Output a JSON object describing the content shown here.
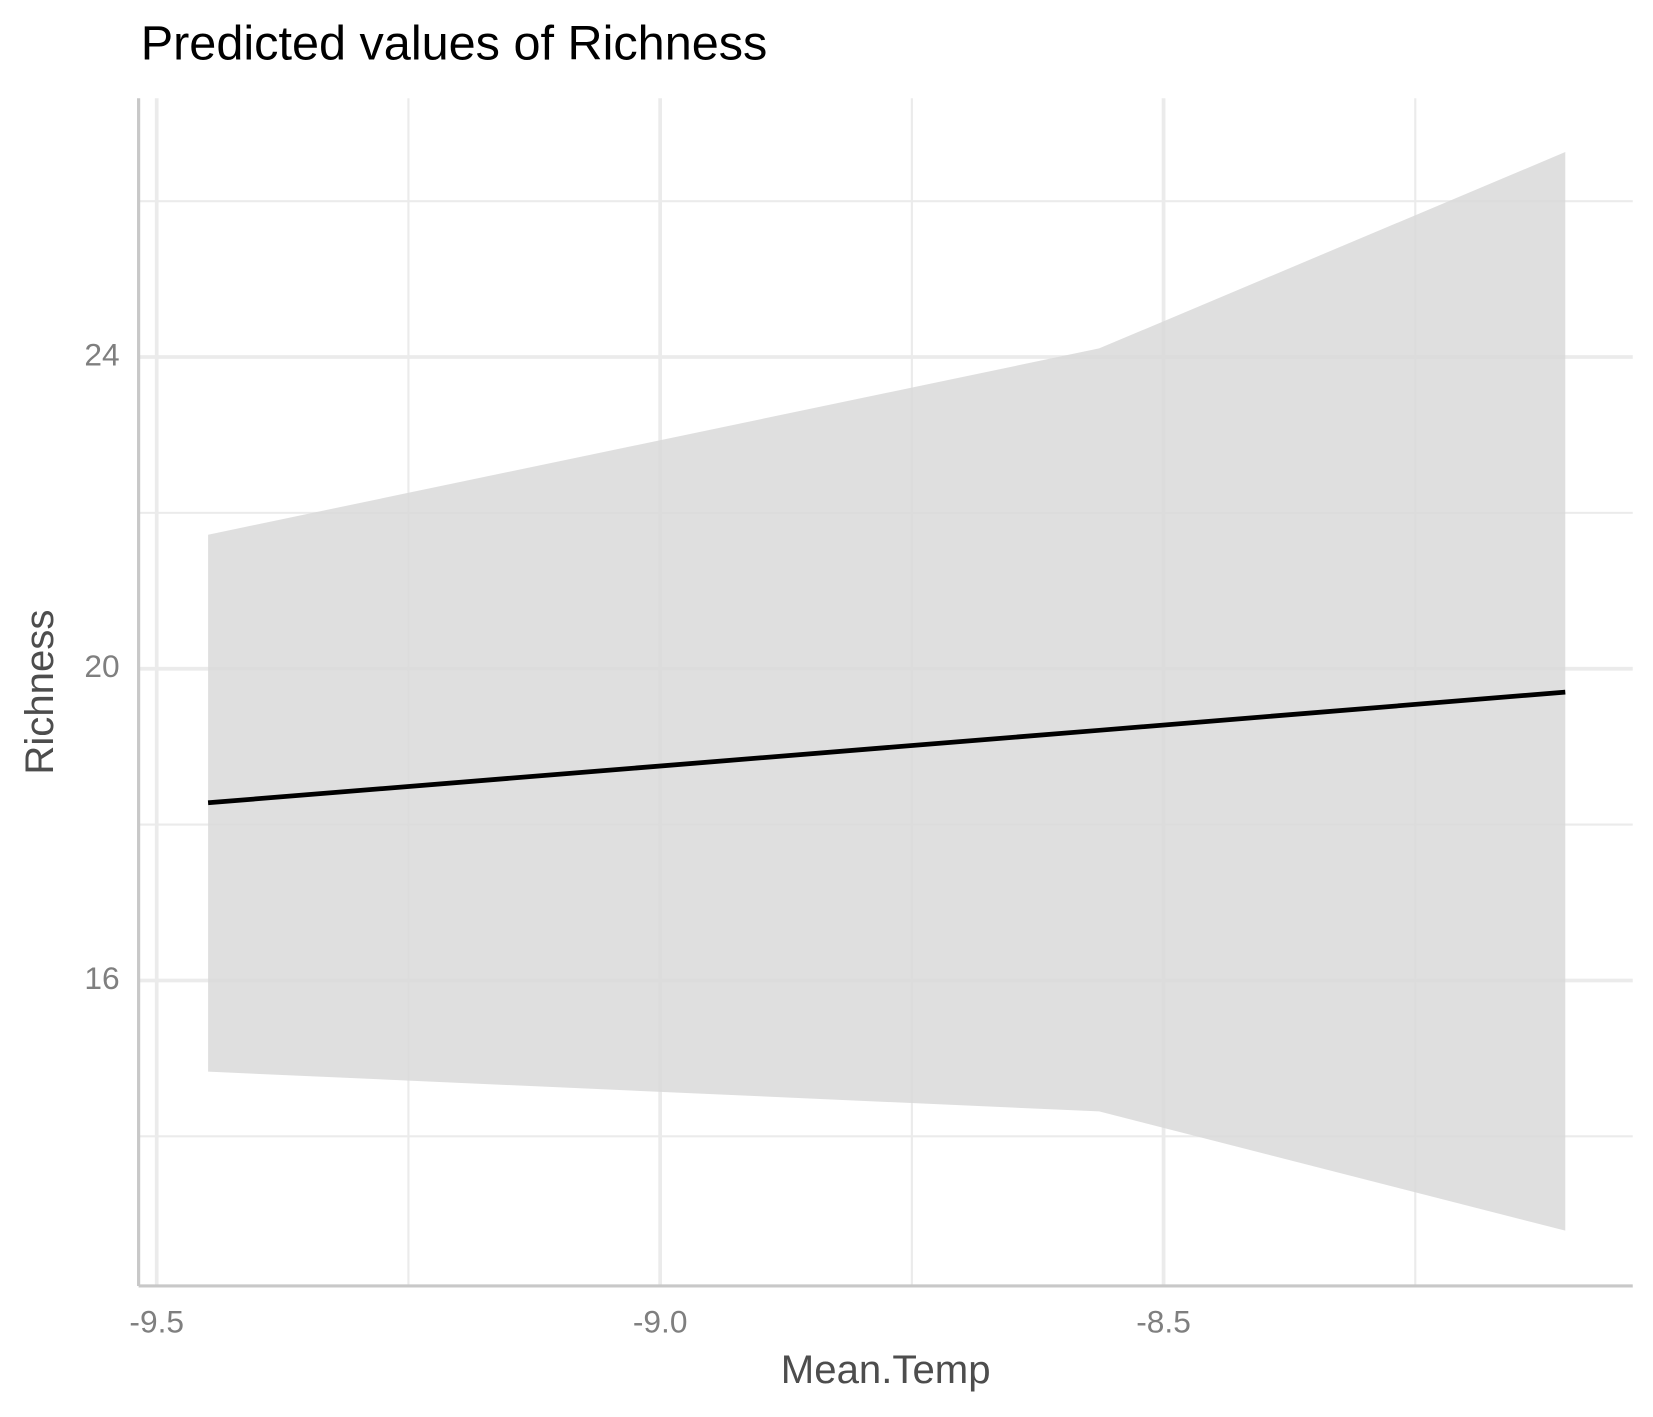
{
  "chart_data": {
    "type": "line",
    "title": "Predicted values of Richness",
    "x_label": "Mean.Temp",
    "y_label": "Richness",
    "x": [
      -9.449,
      -8.564,
      -8.101
    ],
    "series": [
      {
        "name": null,
        "color": "#000000",
        "values": [
          18.28,
          19.21,
          19.7
        ],
        "upper": [
          21.72,
          24.11,
          26.63
        ],
        "lower": [
          14.83,
          14.32,
          12.79
        ],
        "band_color": "#d9d9d9"
      }
    ],
    "xlim": [
      -9.518,
      -8.034
    ],
    "xticks": [
      -9.5,
      {
        "value": -9,
        "label": "-9.0"
      },
      -8.5
    ],
    "xminor": [
      -9.25,
      -8.75,
      -8.25
    ],
    "ylim": [
      12.08,
      27.32
    ],
    "yticks": [
      16,
      20,
      24
    ],
    "yminor": [
      14,
      18,
      22,
      26
    ],
    "grid": true
  }
}
